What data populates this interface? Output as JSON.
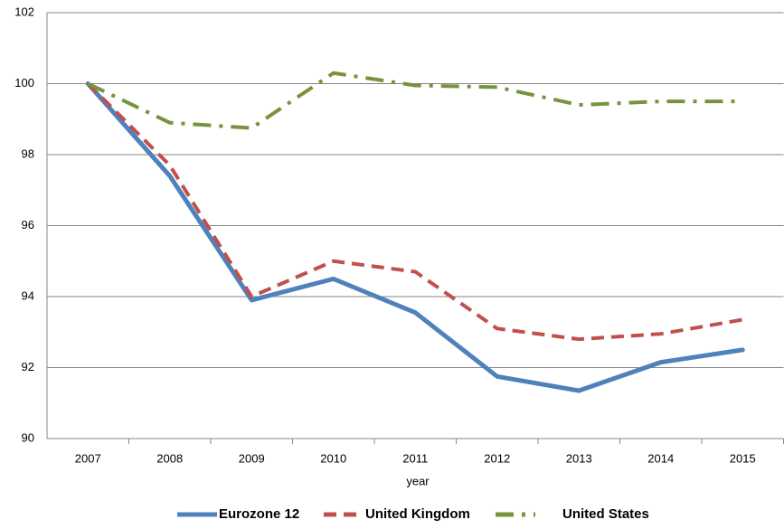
{
  "chart_data": {
    "type": "line",
    "categories": [
      "2007",
      "2008",
      "2009",
      "2010",
      "2011",
      "2012",
      "2013",
      "2014",
      "2015"
    ],
    "x_label": "year",
    "series": [
      {
        "name": "Eurozone 12",
        "color": "#4f81bd",
        "dash": "solid",
        "values": [
          100,
          97.4,
          93.9,
          94.5,
          93.55,
          91.75,
          91.35,
          92.15,
          92.5
        ]
      },
      {
        "name": "United Kingdom",
        "color": "#c0504d",
        "dash": "dashed",
        "values": [
          100,
          97.7,
          94.0,
          95.0,
          94.7,
          93.1,
          92.8,
          92.95,
          93.35
        ]
      },
      {
        "name": "United States",
        "color": "#77933c",
        "dash": "dashdot",
        "values": [
          100,
          98.9,
          98.75,
          100.3,
          99.95,
          99.9,
          99.4,
          99.5,
          99.5
        ]
      }
    ],
    "ylim": [
      90,
      102
    ],
    "yticks": [
      90,
      92,
      94,
      96,
      98,
      100,
      102
    ],
    "grid": true,
    "legend": "bottom"
  }
}
